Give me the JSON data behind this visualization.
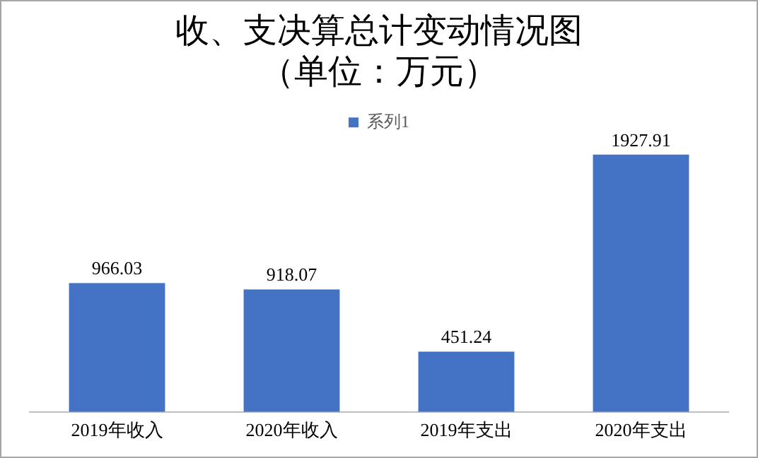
{
  "chart_data": {
    "type": "bar",
    "title": "收、支决算总计变动情况图",
    "subtitle": "（单位：万元）",
    "categories": [
      "2019年收入",
      "2020年收入",
      "2019年支出",
      "2020年支出"
    ],
    "series": [
      {
        "name": "系列1",
        "color": "#4472c4",
        "values": [
          966.03,
          918.07,
          451.24,
          1927.91
        ]
      }
    ],
    "data_labels": true,
    "legend": "top",
    "grid": false
  }
}
